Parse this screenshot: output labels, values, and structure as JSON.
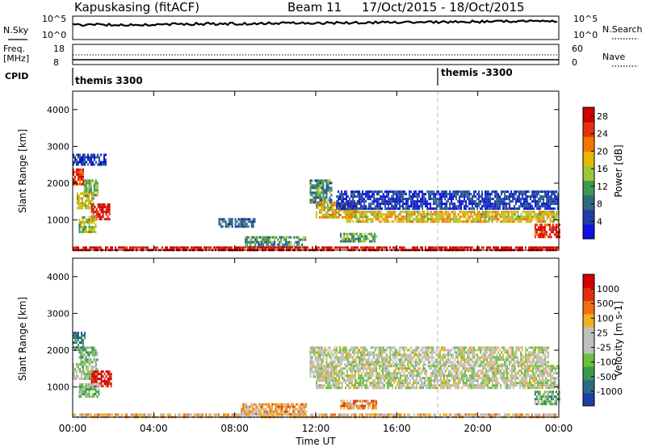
{
  "header": {
    "station": "Kapuskasing (fitACF)",
    "beam": "Beam 11",
    "date_range": "17/Oct/2015 - 18/Oct/2015"
  },
  "top_panels": {
    "nsky_label": "N.Sky",
    "nsky_ticks": [
      "10^5",
      "10^0"
    ],
    "nsearch_label": "N.Search",
    "nsearch_ticks": [
      "10^5",
      "10^0"
    ],
    "freq_label_line1": "Freq.",
    "freq_label_line2": "[MHz]",
    "freq_ticks": [
      "18",
      "8"
    ],
    "nave_label": "Nave",
    "nave_ticks": [
      "60",
      "0"
    ],
    "cpid_label": "CPID",
    "cpid_segments": [
      {
        "start_hour": 0,
        "label": "themis 3300"
      },
      {
        "start_hour": 18,
        "label": "themis -3300"
      }
    ]
  },
  "colors": {
    "power": [
      "#1010e0",
      "#1f3fa8",
      "#2e6a80",
      "#3c9a50",
      "#9cc838",
      "#e8b800",
      "#f07800",
      "#e83010",
      "#d00000"
    ],
    "velocity": [
      "#1f3fa8",
      "#2e6a80",
      "#3c9a50",
      "#6cbf40",
      "#c0c0c0",
      "#c0c0c0",
      "#f0b020",
      "#f07010",
      "#e03010",
      "#d00000"
    ]
  },
  "chart_data": [
    {
      "type": "heatmap",
      "name": "Power",
      "xlabel": "",
      "ylabel": "Slant Range [km]",
      "xlim": [
        0,
        24
      ],
      "ylim": [
        180,
        4500
      ],
      "yticks": [
        1000,
        2000,
        3000,
        4000
      ],
      "colorbar": {
        "label": "Power [dB]",
        "range": [
          0,
          30
        ],
        "ticks": [
          4,
          8,
          12,
          16,
          20,
          24,
          28
        ]
      },
      "regions": [
        {
          "x": [
            0.0,
            0.55
          ],
          "y": [
            2000,
            2400
          ],
          "level": 0.85
        },
        {
          "x": [
            0.55,
            1.2
          ],
          "y": [
            1700,
            2100
          ],
          "level": 0.45
        },
        {
          "x": [
            0.2,
            1.0
          ],
          "y": [
            1350,
            1750
          ],
          "level": 0.55
        },
        {
          "x": [
            0.9,
            1.8
          ],
          "y": [
            1000,
            1450
          ],
          "level": 0.95
        },
        {
          "x": [
            0.3,
            1.1
          ],
          "y": [
            700,
            1100
          ],
          "level": 0.5
        },
        {
          "x": [
            0.0,
            1.6
          ],
          "y": [
            2500,
            2800
          ],
          "level": 0.15
        },
        {
          "x": [
            7.2,
            9.0
          ],
          "y": [
            850,
            1050
          ],
          "level": 0.25
        },
        {
          "x": [
            8.5,
            11.5
          ],
          "y": [
            280,
            560
          ],
          "level": 0.35
        },
        {
          "x": [
            11.7,
            12.8
          ],
          "y": [
            1500,
            2100
          ],
          "level": 0.35
        },
        {
          "x": [
            12.0,
            14.0
          ],
          "y": [
            1050,
            1500
          ],
          "level": 0.6
        },
        {
          "x": [
            13.5,
            24.0
          ],
          "y": [
            950,
            1250
          ],
          "level": 0.6
        },
        {
          "x": [
            13.0,
            24.0
          ],
          "y": [
            1300,
            1800
          ],
          "level": 0.15
        },
        {
          "x": [
            13.2,
            15.0
          ],
          "y": [
            450,
            650
          ],
          "level": 0.4
        },
        {
          "x": [
            22.8,
            24.0
          ],
          "y": [
            550,
            900
          ],
          "level": 0.9
        },
        {
          "x": [
            0.0,
            24.0
          ],
          "y": [
            180,
            280
          ],
          "level": 0.95
        }
      ]
    },
    {
      "type": "heatmap",
      "name": "Velocity",
      "xlabel": "Time UT",
      "ylabel": "Slant Range [km]",
      "xlim": [
        0,
        24
      ],
      "ylim": [
        180,
        4500
      ],
      "xticks": [
        "00:00",
        "04:00",
        "08:00",
        "12:00",
        "16:00",
        "20:00",
        "00:00"
      ],
      "yticks": [
        1000,
        2000,
        3000,
        4000
      ],
      "colorbar": {
        "label": "Velocity [m s-1]",
        "ticks": [
          "1000",
          "500",
          "100",
          "25",
          "-25",
          "-100",
          "-500",
          "-1000"
        ]
      },
      "regions": [
        {
          "x": [
            0.0,
            0.6
          ],
          "y": [
            2000,
            2500
          ],
          "level": 0.2
        },
        {
          "x": [
            0.3,
            1.2
          ],
          "y": [
            1650,
            2100
          ],
          "level": 0.35
        },
        {
          "x": [
            0.0,
            1.2
          ],
          "y": [
            1250,
            1650
          ],
          "level": 0.45
        },
        {
          "x": [
            0.9,
            1.9
          ],
          "y": [
            1000,
            1450
          ],
          "level": 0.95
        },
        {
          "x": [
            0.3,
            1.3
          ],
          "y": [
            750,
            1100
          ],
          "level": 0.4
        },
        {
          "x": [
            8.3,
            11.5
          ],
          "y": [
            280,
            560
          ],
          "level": 0.65
        },
        {
          "x": [
            11.7,
            13.0
          ],
          "y": [
            1300,
            2100
          ],
          "level": 0.48
        },
        {
          "x": [
            12.0,
            24.0
          ],
          "y": [
            950,
            1600
          ],
          "level": 0.48
        },
        {
          "x": [
            13.0,
            23.5
          ],
          "y": [
            1600,
            2100
          ],
          "level": 0.48
        },
        {
          "x": [
            13.2,
            15.0
          ],
          "y": [
            450,
            650
          ],
          "level": 0.7
        },
        {
          "x": [
            22.8,
            24.0
          ],
          "y": [
            550,
            900
          ],
          "level": 0.3
        },
        {
          "x": [
            0.0,
            24.0
          ],
          "y": [
            180,
            280
          ],
          "level": 0.6
        }
      ]
    }
  ]
}
